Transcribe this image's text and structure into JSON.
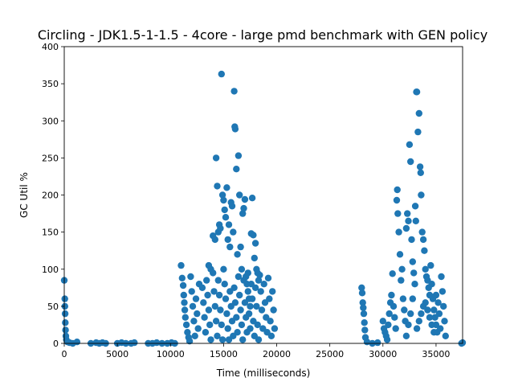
{
  "chart_data": {
    "type": "scatter",
    "title": "Circling - JDK1.5-1-1.5 - 4core -  large pmd benchmark with GEN policy",
    "xlabel": "Time (milliseconds)",
    "ylabel": "GC Util %",
    "xlim": [
      0,
      37500
    ],
    "ylim": [
      0,
      400
    ],
    "xticks": [
      0,
      5000,
      10000,
      15000,
      20000,
      25000,
      30000,
      35000
    ],
    "yticks": [
      0,
      50,
      100,
      150,
      200,
      250,
      300,
      350,
      400
    ],
    "grid": false,
    "marker_color": "#1f77b4",
    "series": [
      {
        "points": [
          [
            0,
            85
          ],
          [
            50,
            60
          ],
          [
            60,
            50
          ],
          [
            80,
            40
          ],
          [
            100,
            28
          ],
          [
            120,
            18
          ],
          [
            150,
            10
          ],
          [
            200,
            5
          ],
          [
            300,
            2
          ],
          [
            500,
            1
          ],
          [
            800,
            0
          ],
          [
            1200,
            2
          ],
          [
            2500,
            0
          ],
          [
            3000,
            1
          ],
          [
            3300,
            0
          ],
          [
            3600,
            1
          ],
          [
            3900,
            0
          ],
          [
            5000,
            0
          ],
          [
            5400,
            1
          ],
          [
            5800,
            0
          ],
          [
            6300,
            0
          ],
          [
            6600,
            1
          ],
          [
            7900,
            0
          ],
          [
            8300,
            0
          ],
          [
            8700,
            1
          ],
          [
            9200,
            0
          ],
          [
            9700,
            0
          ],
          [
            10100,
            1
          ],
          [
            10400,
            0
          ],
          [
            11000,
            105
          ],
          [
            11100,
            88
          ],
          [
            11200,
            78
          ],
          [
            11250,
            65
          ],
          [
            11300,
            55
          ],
          [
            11350,
            45
          ],
          [
            11400,
            35
          ],
          [
            11500,
            25
          ],
          [
            11600,
            15
          ],
          [
            11700,
            8
          ],
          [
            11800,
            3
          ],
          [
            11900,
            90
          ],
          [
            12000,
            70
          ],
          [
            12100,
            50
          ],
          [
            12200,
            30
          ],
          [
            12300,
            10
          ],
          [
            12400,
            60
          ],
          [
            12500,
            40
          ],
          [
            12600,
            20
          ],
          [
            12700,
            80
          ],
          [
            13000,
            75
          ],
          [
            13100,
            55
          ],
          [
            13200,
            35
          ],
          [
            13300,
            15
          ],
          [
            13400,
            85
          ],
          [
            13500,
            65
          ],
          [
            13600,
            45
          ],
          [
            13700,
            25
          ],
          [
            13800,
            5
          ],
          [
            13600,
            105
          ],
          [
            13800,
            100
          ],
          [
            14000,
            95
          ],
          [
            14100,
            70
          ],
          [
            14200,
            50
          ],
          [
            14300,
            30
          ],
          [
            14400,
            10
          ],
          [
            14000,
            145
          ],
          [
            14200,
            140
          ],
          [
            14300,
            250
          ],
          [
            14400,
            212
          ],
          [
            14500,
            150
          ],
          [
            14600,
            160
          ],
          [
            14700,
            155
          ],
          [
            14800,
            363
          ],
          [
            14900,
            200
          ],
          [
            15000,
            193
          ],
          [
            15000,
            100
          ],
          [
            15100,
            80
          ],
          [
            15200,
            60
          ],
          [
            15300,
            40
          ],
          [
            15400,
            20
          ],
          [
            15500,
            5
          ],
          [
            15100,
            180
          ],
          [
            15200,
            170
          ],
          [
            15300,
            210
          ],
          [
            15400,
            140
          ],
          [
            15500,
            160
          ],
          [
            15600,
            130
          ],
          [
            15700,
            190
          ],
          [
            15800,
            185
          ],
          [
            15900,
            150
          ],
          [
            16000,
            340
          ],
          [
            16050,
            292
          ],
          [
            16100,
            289
          ],
          [
            16200,
            235
          ],
          [
            16300,
            120
          ],
          [
            16400,
            253
          ],
          [
            16500,
            200
          ],
          [
            16600,
            130
          ],
          [
            16700,
            100
          ],
          [
            16800,
            175
          ],
          [
            16900,
            182
          ],
          [
            17000,
            194
          ],
          [
            17100,
            90
          ],
          [
            17200,
            80
          ],
          [
            17300,
            70
          ],
          [
            17400,
            60
          ],
          [
            17500,
            50
          ],
          [
            17600,
            148
          ],
          [
            17700,
            196
          ],
          [
            17800,
            146
          ],
          [
            17900,
            115
          ],
          [
            18000,
            135
          ],
          [
            18100,
            100
          ],
          [
            18200,
            95
          ],
          [
            18300,
            85
          ],
          [
            16000,
            75
          ],
          [
            16100,
            55
          ],
          [
            16200,
            35
          ],
          [
            16300,
            15
          ],
          [
            16400,
            90
          ],
          [
            16500,
            65
          ],
          [
            16600,
            45
          ],
          [
            16700,
            25
          ],
          [
            16800,
            5
          ],
          [
            16900,
            85
          ],
          [
            17000,
            55
          ],
          [
            17100,
            35
          ],
          [
            17200,
            15
          ],
          [
            17300,
            95
          ],
          [
            17400,
            40
          ],
          [
            17500,
            20
          ],
          [
            17600,
            80
          ],
          [
            17700,
            60
          ],
          [
            17800,
            30
          ],
          [
            17900,
            10
          ],
          [
            18000,
            75
          ],
          [
            18100,
            50
          ],
          [
            18200,
            25
          ],
          [
            18300,
            5
          ],
          [
            18400,
            92
          ],
          [
            18500,
            70
          ],
          [
            18600,
            45
          ],
          [
            18700,
            20
          ],
          [
            18800,
            80
          ],
          [
            18900,
            55
          ],
          [
            19000,
            35
          ],
          [
            19100,
            15
          ],
          [
            19200,
            88
          ],
          [
            19300,
            60
          ],
          [
            19400,
            30
          ],
          [
            19500,
            10
          ],
          [
            19600,
            70
          ],
          [
            19700,
            45
          ],
          [
            19800,
            20
          ],
          [
            14500,
            85
          ],
          [
            14600,
            65
          ],
          [
            14700,
            45
          ],
          [
            14800,
            25
          ],
          [
            14900,
            5
          ],
          [
            15600,
            70
          ],
          [
            15700,
            50
          ],
          [
            15800,
            30
          ],
          [
            15900,
            10
          ],
          [
            28000,
            75
          ],
          [
            28050,
            68
          ],
          [
            28100,
            55
          ],
          [
            28150,
            48
          ],
          [
            28200,
            40
          ],
          [
            28250,
            28
          ],
          [
            28300,
            18
          ],
          [
            28350,
            8
          ],
          [
            28500,
            2
          ],
          [
            29000,
            0
          ],
          [
            29500,
            1
          ],
          [
            30000,
            30
          ],
          [
            30100,
            20
          ],
          [
            30200,
            15
          ],
          [
            30300,
            10
          ],
          [
            30400,
            5
          ],
          [
            30500,
            25
          ],
          [
            30600,
            40
          ],
          [
            30700,
            55
          ],
          [
            30800,
            65
          ],
          [
            30900,
            94
          ],
          [
            31000,
            50
          ],
          [
            31100,
            35
          ],
          [
            31200,
            20
          ],
          [
            31300,
            193
          ],
          [
            31350,
            207
          ],
          [
            31400,
            175
          ],
          [
            31500,
            150
          ],
          [
            31600,
            120
          ],
          [
            31700,
            85
          ],
          [
            31800,
            100
          ],
          [
            31900,
            60
          ],
          [
            32000,
            45
          ],
          [
            32100,
            30
          ],
          [
            32200,
            155
          ],
          [
            32300,
            175
          ],
          [
            32400,
            165
          ],
          [
            32500,
            268
          ],
          [
            32600,
            245
          ],
          [
            32700,
            140
          ],
          [
            32800,
            110
          ],
          [
            32900,
            95
          ],
          [
            33000,
            80
          ],
          [
            33050,
            185
          ],
          [
            33100,
            165
          ],
          [
            33150,
            339
          ],
          [
            33200,
            339
          ],
          [
            33300,
            285
          ],
          [
            33400,
            310
          ],
          [
            33500,
            238
          ],
          [
            33550,
            230
          ],
          [
            33600,
            200
          ],
          [
            33700,
            150
          ],
          [
            33800,
            140
          ],
          [
            33900,
            125
          ],
          [
            34000,
            100
          ],
          [
            34100,
            90
          ],
          [
            34200,
            85
          ],
          [
            34300,
            75
          ],
          [
            34400,
            65
          ],
          [
            34500,
            105
          ],
          [
            34600,
            80
          ],
          [
            34700,
            60
          ],
          [
            34800,
            45
          ],
          [
            34900,
            35
          ],
          [
            35000,
            25
          ],
          [
            35100,
            15
          ],
          [
            35200,
            55
          ],
          [
            35300,
            40
          ],
          [
            35400,
            20
          ],
          [
            35500,
            90
          ],
          [
            35600,
            70
          ],
          [
            35700,
            50
          ],
          [
            35800,
            30
          ],
          [
            35900,
            10
          ],
          [
            34000,
            55
          ],
          [
            34200,
            45
          ],
          [
            34400,
            35
          ],
          [
            34600,
            25
          ],
          [
            34800,
            15
          ],
          [
            35000,
            65
          ],
          [
            33800,
            50
          ],
          [
            33600,
            40
          ],
          [
            33400,
            30
          ],
          [
            33200,
            20
          ],
          [
            32800,
            60
          ],
          [
            32600,
            40
          ],
          [
            32400,
            25
          ],
          [
            32200,
            10
          ],
          [
            37400,
            0
          ],
          [
            37500,
            1
          ]
        ]
      }
    ]
  }
}
